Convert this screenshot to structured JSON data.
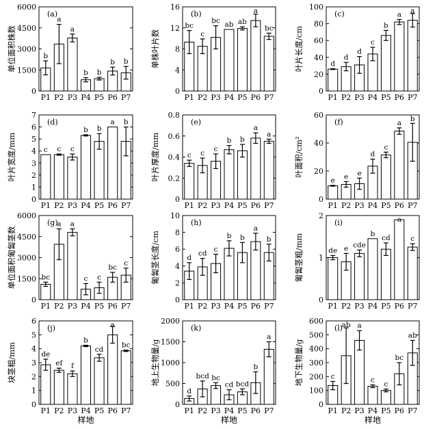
{
  "figure": {
    "xlabel": "样地"
  },
  "chart_data": [
    {
      "type": "bar",
      "panel_label": "(a)",
      "ylabel": "单位面积株数",
      "categories": [
        "P1",
        "P2",
        "P3",
        "P4",
        "P5",
        "P6",
        "P7"
      ],
      "values": [
        1650,
        3350,
        3780,
        800,
        880,
        1420,
        1300
      ],
      "errors": [
        500,
        1400,
        280,
        150,
        100,
        280,
        450
      ],
      "letters": [
        "b",
        "a",
        "a",
        "b",
        "b",
        "b",
        "b"
      ],
      "ylim": [
        0,
        6000
      ],
      "yticks": [
        "0",
        "1500",
        "3000",
        "4500",
        "6000"
      ]
    },
    {
      "type": "bar",
      "panel_label": "(b)",
      "ylabel": "单株叶片数",
      "categories": [
        "P1",
        "P2",
        "P3",
        "P4",
        "P5",
        "P6",
        "P7"
      ],
      "values": [
        9.3,
        8.5,
        10.2,
        11.7,
        11.9,
        13.4,
        10.4
      ],
      "errors": [
        2.2,
        1.4,
        2.2,
        0,
        0.3,
        1.2,
        0.6
      ],
      "letters": [
        "bc",
        "c",
        "bc",
        "ab",
        "ab",
        "a",
        "bc"
      ],
      "ylim": [
        0,
        16
      ],
      "yticks": [
        "0",
        "4",
        "8",
        "12",
        "16"
      ]
    },
    {
      "type": "bar",
      "panel_label": "(c)",
      "ylabel": "叶片长度/cm",
      "categories": [
        "P1",
        "P2",
        "P3",
        "P4",
        "P5",
        "P6",
        "P7"
      ],
      "values": [
        26,
        29,
        31,
        44,
        66,
        82,
        84
      ],
      "errors": [
        0.5,
        5,
        10,
        8,
        6,
        3,
        8
      ],
      "letters": [
        "d",
        "d",
        "d",
        "c",
        "b",
        "a",
        "a"
      ],
      "ylim": [
        0,
        100
      ],
      "yticks": [
        "0",
        "20",
        "40",
        "60",
        "80",
        "100"
      ]
    },
    {
      "type": "bar",
      "panel_label": "(d)",
      "ylabel": "叶片宽度/mm",
      "categories": [
        "P1",
        "P2",
        "P3",
        "P4",
        "P5",
        "P6",
        "P7"
      ],
      "values": [
        3.7,
        3.7,
        3.5,
        5.3,
        4.8,
        6.0,
        4.8
      ],
      "errors": [
        0,
        0.05,
        0.25,
        0.05,
        0.65,
        0,
        1.2
      ],
      "letters": [
        "c",
        "c",
        "c",
        "b",
        "b",
        "a",
        "b"
      ],
      "ylim": [
        0,
        7
      ],
      "yticks": [
        "0",
        "1",
        "2",
        "3",
        "4",
        "5",
        "6",
        "7"
      ]
    },
    {
      "type": "bar",
      "panel_label": "(e)",
      "ylabel": "叶片厚度/mm",
      "categories": [
        "P1",
        "P2",
        "P3",
        "P4",
        "P5",
        "P6",
        "P7"
      ],
      "values": [
        0.34,
        0.32,
        0.36,
        0.47,
        0.46,
        0.58,
        0.55
      ],
      "errors": [
        0.03,
        0.07,
        0.07,
        0.04,
        0.06,
        0.05,
        0.02
      ],
      "letters": [
        "c",
        "c",
        "c",
        "b",
        "b",
        "a",
        "a"
      ],
      "ylim": [
        0,
        0.8
      ],
      "yticks": [
        "0",
        "0.2",
        "0.4",
        "0.6",
        "0.8"
      ]
    },
    {
      "type": "bar",
      "panel_label": "(f)",
      "ylabel": "叶面积/cm²",
      "categories": [
        "P1",
        "P2",
        "P3",
        "P4",
        "P5",
        "P6",
        "P7"
      ],
      "values": [
        9.5,
        10.5,
        11,
        23.5,
        31.5,
        48.5,
        40.5
      ],
      "errors": [
        0.3,
        2,
        4,
        5,
        2,
        2.3,
        13.5
      ],
      "letters": [
        "e",
        "e",
        "e",
        "d",
        "c",
        "a",
        "b"
      ],
      "ylim": [
        0,
        60
      ],
      "yticks": [
        "0",
        "20",
        "40",
        "60"
      ]
    },
    {
      "type": "bar",
      "panel_label": "(g)",
      "ylabel": "单位面积匍匐茎数",
      "categories": [
        "P1",
        "P2",
        "P3",
        "P4",
        "P5",
        "P6",
        "P7"
      ],
      "values": [
        1100,
        3950,
        4800,
        750,
        850,
        1600,
        1750
      ],
      "errors": [
        150,
        1100,
        250,
        400,
        400,
        350,
        500
      ],
      "letters": [
        "bc",
        "a",
        "a",
        "c",
        "c",
        "bc",
        "c"
      ],
      "ylim": [
        0,
        6000
      ],
      "yticks": [
        "0",
        "1500",
        "3000",
        "4500",
        "6000"
      ]
    },
    {
      "type": "bar",
      "panel_label": "(h)",
      "ylabel": "匍匐茎长度/cm",
      "categories": [
        "P1",
        "P2",
        "P3",
        "P4",
        "P5",
        "P6",
        "P7"
      ],
      "values": [
        3.4,
        3.9,
        4.3,
        6.1,
        5.6,
        6.9,
        5.6
      ],
      "errors": [
        1.0,
        1.0,
        1.1,
        0.9,
        1.2,
        1.0,
        1.0
      ],
      "letters": [
        "d",
        "cd",
        "c",
        "b",
        "b",
        "a",
        "b"
      ],
      "ylim": [
        0,
        10
      ],
      "yticks": [
        "0",
        "2",
        "4",
        "6",
        "8",
        "10"
      ]
    },
    {
      "type": "bar",
      "panel_label": "(i)",
      "ylabel": "匍匐茎粗/mm",
      "categories": [
        "P1",
        "P2",
        "P3",
        "P4",
        "P5",
        "P6",
        "P7"
      ],
      "values": [
        1.0,
        0.9,
        1.1,
        1.45,
        1.2,
        1.9,
        1.25
      ],
      "errors": [
        0.05,
        0.2,
        0.08,
        0,
        0.15,
        0,
        0.08
      ],
      "letters": [
        "de",
        "e",
        "cde",
        "b",
        "cd",
        "a",
        "c"
      ],
      "ylim": [
        0,
        2
      ],
      "yticks": [
        "0",
        "1",
        "2"
      ]
    },
    {
      "type": "bar",
      "panel_label": "(j)",
      "ylabel": "块茎粗/mm",
      "categories": [
        "P1",
        "P2",
        "P3",
        "P4",
        "P5",
        "P6",
        "P7"
      ],
      "values": [
        2.85,
        2.45,
        2.2,
        4.2,
        3.35,
        5.0,
        3.85
      ],
      "errors": [
        0.4,
        0.15,
        0.2,
        0.05,
        0.25,
        0.6,
        0.05
      ],
      "letters": [
        "de",
        "ef",
        "f",
        "b",
        "cd",
        "a",
        "bc"
      ],
      "ylim": [
        0,
        6
      ],
      "yticks": [
        "0",
        "1",
        "2",
        "3",
        "4",
        "5",
        "6"
      ]
    },
    {
      "type": "bar",
      "panel_label": "(k)",
      "ylabel": "地上生物量/g",
      "categories": [
        "P1",
        "P2",
        "P3",
        "P4",
        "P5",
        "P6",
        "P7"
      ],
      "values": [
        140,
        370,
        450,
        230,
        300,
        520,
        1320
      ],
      "errors": [
        60,
        190,
        70,
        120,
        70,
        260,
        180
      ],
      "letters": [
        "d",
        "bcd",
        "bc",
        "cd",
        "bcd",
        "b",
        "a"
      ],
      "ylim": [
        0,
        2000
      ],
      "yticks": [
        "0",
        "500",
        "1000",
        "1500",
        "2000"
      ]
    },
    {
      "type": "bar",
      "panel_label": "(l)",
      "ylabel": "地下生物量/g",
      "categories": [
        "P1",
        "P2",
        "P3",
        "P4",
        "P5",
        "P6",
        "P7"
      ],
      "values": [
        135,
        350,
        460,
        130,
        100,
        220,
        370
      ],
      "errors": [
        30,
        200,
        70,
        10,
        10,
        80,
        90
      ],
      "letters": [
        "c",
        "ab",
        "a",
        "c",
        "c",
        "bc",
        "ab"
      ],
      "ylim": [
        0,
        600
      ],
      "yticks": [
        "0",
        "100",
        "200",
        "300",
        "400",
        "500",
        "600"
      ]
    }
  ]
}
